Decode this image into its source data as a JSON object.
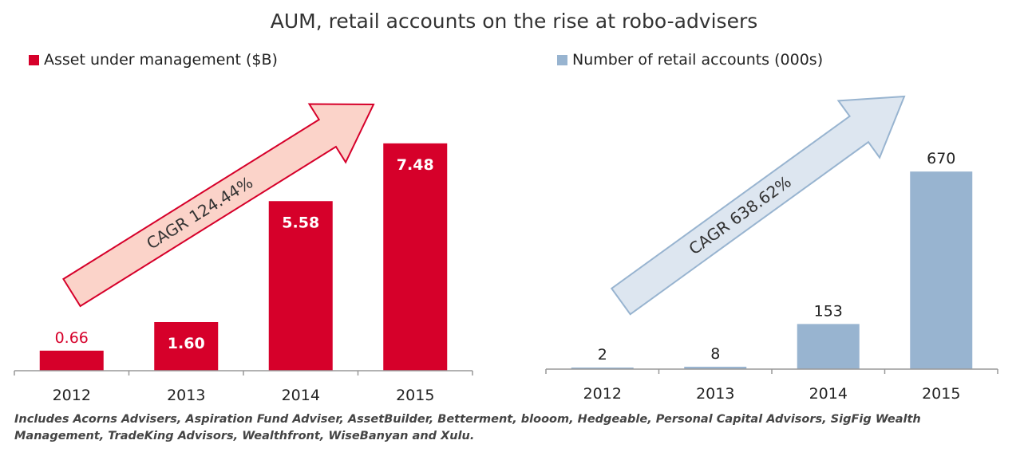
{
  "title": "AUM, retail accounts on the rise at robo-advisers",
  "chart_data": [
    {
      "type": "bar",
      "legend": "Asset under management ($B)",
      "categories": [
        "2012",
        "2013",
        "2014",
        "2015"
      ],
      "values": [
        0.66,
        1.6,
        5.58,
        7.48
      ],
      "value_labels": [
        "0.66",
        "1.60",
        "5.58",
        "7.48"
      ],
      "ylim": [
        0,
        8
      ],
      "annotation": "CAGR 124.44%",
      "color": "#d6002a",
      "arrow_fill": "#fbd3c9",
      "arrow_stroke": "#d6002a",
      "label_colors": [
        "#d6002a",
        "#ffffff",
        "#ffffff",
        "#ffffff"
      ]
    },
    {
      "type": "bar",
      "legend": "Number of retail accounts (000s)",
      "categories": [
        "2012",
        "2013",
        "2014",
        "2015"
      ],
      "values": [
        2,
        8,
        153,
        670
      ],
      "value_labels": [
        "2",
        "8",
        "153",
        "670"
      ],
      "ylim": [
        0,
        730
      ],
      "annotation": "CAGR 638.62%",
      "color": "#98b4d0",
      "arrow_fill": "#dde6f0",
      "arrow_stroke": "#98b4d0",
      "label_colors": [
        "#222222",
        "#222222",
        "#222222",
        "#222222"
      ]
    }
  ],
  "footnote": "Includes Acorns Advisers, Aspiration Fund Adviser, AssetBuilder, Betterment, blooom, Hedgeable, Personal Capital Advisors, SigFig Wealth Management, TradeKing Advisors, Wealthfront, WiseBanyan and Xulu."
}
